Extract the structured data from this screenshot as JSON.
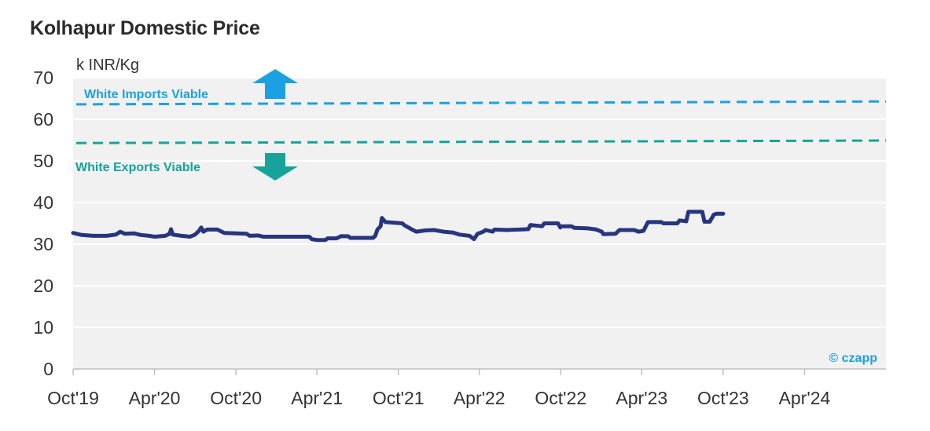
{
  "chart_data": {
    "type": "line",
    "title": "Kolhapur Domestic Price",
    "unit_label": "k INR/Kg",
    "ylim": [
      0,
      70
    ],
    "yticks": [
      0,
      10,
      20,
      30,
      40,
      50,
      60,
      70
    ],
    "xlim": [
      "2019-10-01",
      "2024-10-01"
    ],
    "xtick_labels": [
      "Oct'19",
      "Apr'20",
      "Oct'20",
      "Apr'21",
      "Oct'21",
      "Apr'22",
      "Oct'22",
      "Apr'23",
      "Oct'23",
      "Apr'24"
    ],
    "grid": true,
    "series": [
      {
        "color": "#27357e",
        "points": [
          [
            "2019-10-01",
            32.7
          ],
          [
            "2019-10-20",
            32.2
          ],
          [
            "2019-11-15",
            32.0
          ],
          [
            "2019-12-15",
            32.0
          ],
          [
            "2020-01-05",
            32.3
          ],
          [
            "2020-01-15",
            33.0
          ],
          [
            "2020-01-25",
            32.5
          ],
          [
            "2020-02-15",
            32.6
          ],
          [
            "2020-03-01",
            32.2
          ],
          [
            "2020-03-20",
            32.0
          ],
          [
            "2020-04-01",
            31.8
          ],
          [
            "2020-04-25",
            32.0
          ],
          [
            "2020-05-05",
            32.5
          ],
          [
            "2020-05-08",
            33.6
          ],
          [
            "2020-05-12",
            32.3
          ],
          [
            "2020-06-01",
            32.0
          ],
          [
            "2020-06-20",
            31.8
          ],
          [
            "2020-07-01",
            32.3
          ],
          [
            "2020-07-10",
            33.2
          ],
          [
            "2020-07-15",
            34.0
          ],
          [
            "2020-07-20",
            33.0
          ],
          [
            "2020-07-28",
            33.5
          ],
          [
            "2020-08-20",
            33.5
          ],
          [
            "2020-09-05",
            32.7
          ],
          [
            "2020-10-01",
            32.6
          ],
          [
            "2020-10-25",
            32.5
          ],
          [
            "2020-11-01",
            32.0
          ],
          [
            "2020-11-20",
            32.1
          ],
          [
            "2020-12-01",
            31.8
          ],
          [
            "2021-01-01",
            31.8
          ],
          [
            "2021-02-01",
            31.8
          ],
          [
            "2021-03-15",
            31.8
          ],
          [
            "2021-03-20",
            31.2
          ],
          [
            "2021-04-01",
            31.0
          ],
          [
            "2021-04-20",
            31.0
          ],
          [
            "2021-04-25",
            31.4
          ],
          [
            "2021-05-15",
            31.4
          ],
          [
            "2021-05-25",
            31.9
          ],
          [
            "2021-06-10",
            31.9
          ],
          [
            "2021-06-15",
            31.5
          ],
          [
            "2021-08-05",
            31.5
          ],
          [
            "2021-08-10",
            32.0
          ],
          [
            "2021-08-15",
            33.5
          ],
          [
            "2021-08-22",
            34.3
          ],
          [
            "2021-08-25",
            36.3
          ],
          [
            "2021-09-02",
            35.3
          ],
          [
            "2021-10-10",
            35.0
          ],
          [
            "2021-10-15",
            34.5
          ],
          [
            "2021-11-01",
            33.5
          ],
          [
            "2021-11-10",
            33.0
          ],
          [
            "2021-12-01",
            33.3
          ],
          [
            "2021-12-20",
            33.4
          ],
          [
            "2022-01-10",
            33.0
          ],
          [
            "2022-02-01",
            32.8
          ],
          [
            "2022-02-15",
            32.3
          ],
          [
            "2022-03-10",
            32.0
          ],
          [
            "2022-03-20",
            31.2
          ],
          [
            "2022-03-28",
            32.5
          ],
          [
            "2022-04-10",
            33.0
          ],
          [
            "2022-04-15",
            33.4
          ],
          [
            "2022-05-01",
            33.0
          ],
          [
            "2022-05-05",
            33.5
          ],
          [
            "2022-06-01",
            33.4
          ],
          [
            "2022-07-01",
            33.5
          ],
          [
            "2022-07-20",
            33.6
          ],
          [
            "2022-07-25",
            34.6
          ],
          [
            "2022-08-20",
            34.3
          ],
          [
            "2022-08-25",
            35.0
          ],
          [
            "2022-09-25",
            35.0
          ],
          [
            "2022-09-30",
            34.0
          ],
          [
            "2022-10-01",
            34.3
          ],
          [
            "2022-10-25",
            34.3
          ],
          [
            "2022-11-01",
            33.9
          ],
          [
            "2022-12-01",
            33.8
          ],
          [
            "2022-12-20",
            33.5
          ],
          [
            "2023-01-01",
            33.0
          ],
          [
            "2023-01-05",
            32.4
          ],
          [
            "2023-02-01",
            32.5
          ],
          [
            "2023-02-10",
            33.4
          ],
          [
            "2023-03-15",
            33.4
          ],
          [
            "2023-03-25",
            33.0
          ],
          [
            "2023-04-05",
            33.2
          ],
          [
            "2023-04-15",
            35.3
          ],
          [
            "2023-05-15",
            35.3
          ],
          [
            "2023-05-20",
            35.0
          ],
          [
            "2023-06-20",
            35.0
          ],
          [
            "2023-06-25",
            35.7
          ],
          [
            "2023-07-10",
            35.5
          ],
          [
            "2023-07-15",
            37.8
          ],
          [
            "2023-08-15",
            37.8
          ],
          [
            "2023-08-20",
            35.4
          ],
          [
            "2023-09-01",
            35.4
          ],
          [
            "2023-09-10",
            37.1
          ],
          [
            "2023-09-15",
            37.3
          ],
          [
            "2023-10-01",
            37.3
          ]
        ]
      }
    ],
    "thresholds": [
      {
        "label": "White Imports Viable",
        "color": "#1ba1e2",
        "start_value": 63.6,
        "end_value": 64.3,
        "arrow": "up"
      },
      {
        "label": "White Exports Viable",
        "color": "#17a39a",
        "start_value": 54.3,
        "end_value": 54.9,
        "arrow": "down"
      }
    ],
    "watermark": "© czapp",
    "colors": {
      "plot_bg": "#f1f1f1",
      "grid": "#ffffff",
      "axis": "#c0c0c0"
    }
  }
}
